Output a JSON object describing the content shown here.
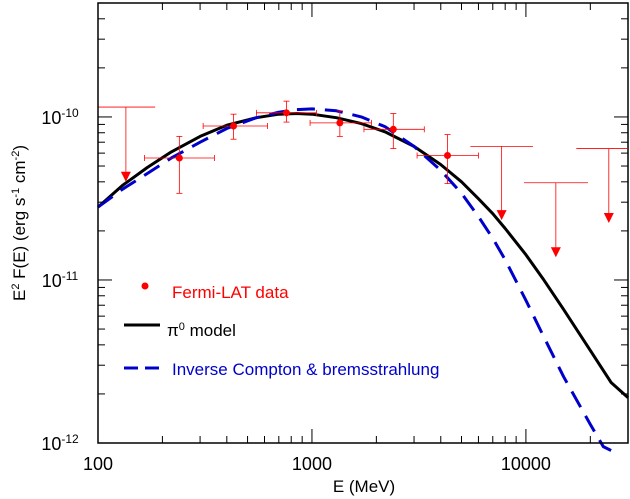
{
  "chart_data": {
    "type": "scatter",
    "x_scale": "log",
    "y_scale": "log",
    "xlim": [
      100,
      30000
    ],
    "ylim": [
      1e-12,
      5e-10
    ],
    "xlabel": "E (MeV)",
    "ylabel": {
      "base": "E",
      "sup1": "2",
      "mid": " F(E) (erg s",
      "sup2": "-1",
      "mid2": " cm",
      "sup3": "-2",
      "end": ")"
    },
    "x_ticks": [
      {
        "value": 100,
        "label": "100"
      },
      {
        "value": 1000,
        "label": "1000"
      },
      {
        "value": 10000,
        "label": "10000"
      }
    ],
    "y_ticks": [
      {
        "value": 1e-10,
        "base": "10",
        "exp": "-10"
      },
      {
        "value": 1e-11,
        "base": "10",
        "exp": "-11"
      },
      {
        "value": 1e-12,
        "base": "10",
        "exp": "-12"
      }
    ],
    "colors": {
      "data": "#ff0000",
      "pi0": "#000000",
      "ic": "#0000cc"
    },
    "points": [
      {
        "x": 240,
        "y": 5.6e-11,
        "xlo": 165,
        "xhi": 350,
        "ylo": 3.4e-11,
        "yhi": 7.6e-11
      },
      {
        "x": 430,
        "y": 8.8e-11,
        "xlo": 310,
        "xhi": 620,
        "ylo": 7.3e-11,
        "yhi": 1.04e-10
      },
      {
        "x": 760,
        "y": 1.06e-10,
        "xlo": 550,
        "xhi": 1050,
        "ylo": 9.3e-11,
        "yhi": 1.25e-10
      },
      {
        "x": 1350,
        "y": 9.2e-11,
        "xlo": 980,
        "xhi": 1900,
        "ylo": 7.6e-11,
        "yhi": 1.09e-10
      },
      {
        "x": 2400,
        "y": 8.4e-11,
        "xlo": 1750,
        "xhi": 3350,
        "ylo": 6.4e-11,
        "yhi": 1.05e-10
      },
      {
        "x": 4300,
        "y": 5.8e-11,
        "xlo": 3100,
        "xhi": 6000,
        "ylo": 3.9e-11,
        "yhi": 7.8e-11
      }
    ],
    "upper_limits": [
      {
        "x": 135,
        "y": 4.3e-11,
        "xlo": 100,
        "xhi": 185,
        "ytop": 1.15e-10
      },
      {
        "x": 7700,
        "y": 2.5e-11,
        "xlo": 5500,
        "xhi": 10800,
        "ytop": 6.6e-11
      },
      {
        "x": 13800,
        "y": 1.48e-11,
        "xlo": 9800,
        "xhi": 19500,
        "ytop": 3.95e-11
      },
      {
        "x": 24400,
        "y": 2.4e-11,
        "xlo": 17200,
        "xhi": 30000,
        "ytop": 6.4e-11
      }
    ],
    "series": [
      {
        "name": "π⁰ model",
        "style": "solid",
        "x": [
          100,
          130,
          170,
          220,
          300,
          400,
          550,
          700,
          850,
          1000,
          1300,
          1700,
          2200,
          3000,
          4000,
          5000,
          6000,
          7000,
          8000,
          10000,
          12000,
          15000,
          20000,
          25000,
          30000
        ],
        "y": [
          2.8e-11,
          3.8e-11,
          4.9e-11,
          6.1e-11,
          7.6e-11,
          8.9e-11,
          9.9e-11,
          1.04e-10,
          1.05e-10,
          1.04e-10,
          9.9e-11,
          9.1e-11,
          8.1e-11,
          6.6e-11,
          5.1e-11,
          4e-11,
          3.15e-11,
          2.55e-11,
          2.07e-11,
          1.43e-11,
          1.02e-11,
          6.6e-12,
          3.7e-12,
          2.35e-12,
          1.9e-12
        ]
      },
      {
        "name": "Inverse Compton & bremsstrahlung",
        "style": "dashed",
        "x": [
          100,
          130,
          170,
          220,
          300,
          400,
          550,
          700,
          850,
          1000,
          1300,
          1700,
          2200,
          3000,
          4000,
          5000,
          6000,
          7000,
          8000,
          10000,
          12000,
          15000,
          20000,
          23000,
          25000
        ],
        "y": [
          2.8e-11,
          3.6e-11,
          4.5e-11,
          5.6e-11,
          7e-11,
          8.5e-11,
          9.9e-11,
          1.07e-10,
          1.11e-10,
          1.12e-10,
          1.09e-10,
          1e-10,
          8.7e-11,
          6.6e-11,
          4.7e-11,
          3.4e-11,
          2.45e-11,
          1.8e-11,
          1.33e-11,
          7.5e-12,
          4.6e-12,
          2.55e-12,
          1.3e-12,
          9.5e-13,
          7.5e-13
        ]
      }
    ],
    "legend": {
      "position": "lower-left",
      "data_label": "Fermi-LAT data",
      "pi0_label_symbol": "π",
      "pi0_label_sup": "0",
      "pi0_label_rest": " model",
      "ic_label": "Inverse Compton & bremsstrahlung"
    }
  }
}
